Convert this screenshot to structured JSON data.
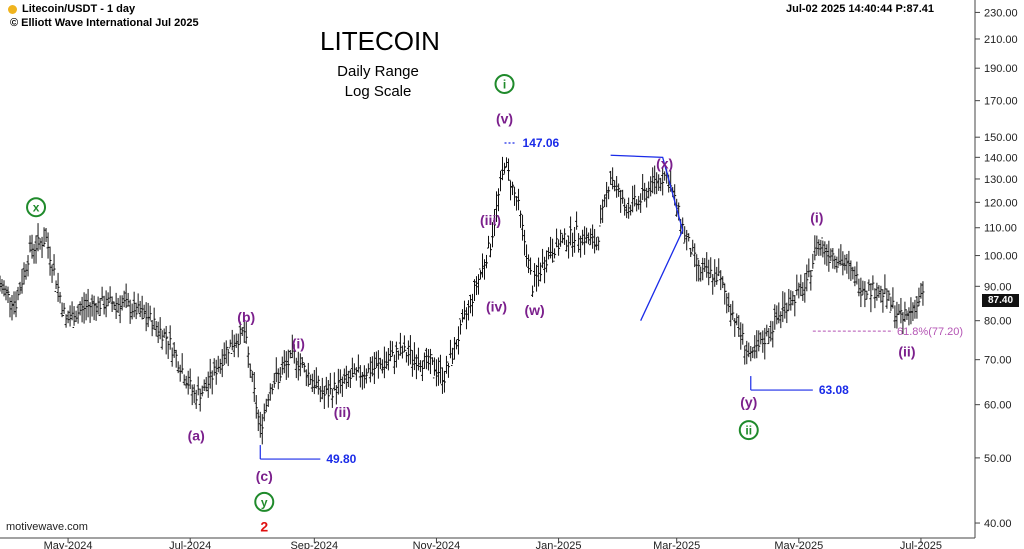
{
  "header": {
    "symbol_line": "Litecoin/USDT - 1 day",
    "copyright_line": "© Elliott Wave International Jul 2025",
    "timestamp_line": "Jul-02 2025  14:40:44  P:87.41",
    "dot_color": "#f0b41e"
  },
  "title": "LITECOIN",
  "subtitle1": "Daily Range",
  "subtitle2": "Log Scale",
  "watermark": "motivewave.com",
  "last_price": "87.40",
  "chart_data": {
    "type": "ohlc",
    "scale": "log",
    "ylim": [
      38,
      240
    ],
    "xlim": [
      "2024-03-28",
      "2025-07-28"
    ],
    "y_ticks": [
      40,
      50,
      60,
      70,
      80,
      90,
      100,
      110,
      120,
      130,
      140,
      150,
      170,
      190,
      210,
      230
    ],
    "y_tick_labels": [
      "40.00",
      "50.00",
      "60.00",
      "70.00",
      "80.00",
      "90.00",
      "100.00",
      "110.00",
      "120.00",
      "130.00",
      "140.00",
      "150.00",
      "170.00",
      "190.00",
      "210.00",
      "230.00"
    ],
    "x_ticks": [
      "2024-05-01",
      "2024-07-01",
      "2024-09-01",
      "2024-11-01",
      "2025-01-01",
      "2025-03-01",
      "2025-05-01",
      "2025-07-01"
    ],
    "x_tick_labels": [
      "May-2024",
      "Jul-2024",
      "Sep-2024",
      "Nov-2024",
      "Jan-2025",
      "Mar-2025",
      "May-2025",
      "Jul-2025"
    ],
    "price_path": [
      [
        "2024-03-28",
        90
      ],
      [
        "2024-04-05",
        85
      ],
      [
        "2024-04-12",
        102
      ],
      [
        "2024-04-20",
        106
      ],
      [
        "2024-04-30",
        80
      ],
      [
        "2024-05-10",
        84
      ],
      [
        "2024-05-20",
        85
      ],
      [
        "2024-05-28",
        85
      ],
      [
        "2024-06-10",
        81
      ],
      [
        "2024-06-20",
        75
      ],
      [
        "2024-07-03",
        62
      ],
      [
        "2024-07-08",
        63
      ],
      [
        "2024-07-20",
        73
      ],
      [
        "2024-07-28",
        77
      ],
      [
        "2024-08-05",
        55
      ],
      [
        "2024-08-10",
        64
      ],
      [
        "2024-08-22",
        71
      ],
      [
        "2024-09-06",
        62
      ],
      [
        "2024-09-20",
        66
      ],
      [
        "2024-10-01",
        68
      ],
      [
        "2024-10-15",
        72
      ],
      [
        "2024-11-01",
        68
      ],
      [
        "2024-11-05",
        66
      ],
      [
        "2024-11-18",
        85
      ],
      [
        "2024-11-28",
        104
      ],
      [
        "2024-12-05",
        138
      ],
      [
        "2024-12-12",
        118
      ],
      [
        "2024-12-19",
        90
      ],
      [
        "2024-12-28",
        102
      ],
      [
        "2025-01-10",
        108
      ],
      [
        "2025-01-20",
        104
      ],
      [
        "2025-01-27",
        132
      ],
      [
        "2025-02-03",
        118
      ],
      [
        "2025-02-10",
        120
      ],
      [
        "2025-02-17",
        128
      ],
      [
        "2025-02-24",
        132
      ],
      [
        "2025-03-05",
        108
      ],
      [
        "2025-03-12",
        95
      ],
      [
        "2025-03-22",
        93
      ],
      [
        "2025-04-07",
        70
      ],
      [
        "2025-04-15",
        76
      ],
      [
        "2025-04-25",
        85
      ],
      [
        "2025-05-05",
        90
      ],
      [
        "2025-05-10",
        104
      ],
      [
        "2025-05-20",
        100
      ],
      [
        "2025-06-02",
        90
      ],
      [
        "2025-06-12",
        88
      ],
      [
        "2025-06-22",
        80
      ],
      [
        "2025-07-02",
        87.4
      ]
    ],
    "annotations": [
      {
        "label": "x",
        "style": "circle-green",
        "date": "2024-04-15",
        "value": 118
      },
      {
        "label": "(b)",
        "style": "purple",
        "date": "2024-07-29",
        "value": 81
      },
      {
        "label": "(a)",
        "style": "purple",
        "date": "2024-07-04",
        "value": 54
      },
      {
        "label": "(c)",
        "style": "purple",
        "date": "2024-08-07",
        "value": 47
      },
      {
        "label": "y",
        "style": "circle-green",
        "date": "2024-08-07",
        "value": 43
      },
      {
        "label": "2",
        "style": "red",
        "date": "2024-08-07",
        "value": 39.5
      },
      {
        "label": "(i)",
        "style": "purple",
        "date": "2024-08-24",
        "value": 74
      },
      {
        "label": "(ii)",
        "style": "purple",
        "date": "2024-09-15",
        "value": 58.5
      },
      {
        "label": "(iii)",
        "style": "purple",
        "date": "2024-11-28",
        "value": 113
      },
      {
        "label": "(iv)",
        "style": "purple",
        "date": "2024-12-01",
        "value": 84
      },
      {
        "label": "(v)",
        "style": "purple",
        "date": "2024-12-05",
        "value": 160
      },
      {
        "label": "i",
        "style": "circle-green",
        "date": "2024-12-05",
        "value": 180
      },
      {
        "label": "(w)",
        "style": "purple",
        "date": "2024-12-20",
        "value": 83
      },
      {
        "label": "(x)",
        "style": "purple",
        "date": "2025-02-23",
        "value": 137
      },
      {
        "label": "(i)",
        "style": "purple",
        "date": "2025-05-10",
        "value": 114
      },
      {
        "label": "(y)",
        "style": "purple",
        "date": "2025-04-06",
        "value": 60.5
      },
      {
        "label": "ii",
        "style": "circle-green",
        "date": "2025-04-06",
        "value": 55
      },
      {
        "label": "(ii)",
        "style": "purple",
        "date": "2025-06-24",
        "value": 72
      }
    ],
    "price_markers": [
      {
        "label": "147.06",
        "value": 147.06,
        "from": "2024-12-05",
        "to": "2024-12-11"
      },
      {
        "label": "49.80",
        "value": 49.8,
        "from": "2024-08-05",
        "to": "2024-09-04"
      },
      {
        "label": "63.08",
        "value": 63.08,
        "from": "2025-04-07",
        "to": "2025-05-08"
      }
    ],
    "fib_level": {
      "label": "61.8%(77.20)",
      "value": 77.2,
      "from": "2025-05-08",
      "to": "2025-07-28"
    },
    "triangle_points": [
      [
        "2025-01-27",
        141
      ],
      [
        "2025-02-22",
        140
      ],
      [
        "2025-03-04",
        109
      ],
      [
        "2025-02-11",
        80
      ]
    ],
    "colors": {
      "bars": "#111111",
      "purple": "#7b1f8c",
      "green": "#1f8a2b",
      "blue": "#1a2be8",
      "red": "#e01010",
      "fib": "#b454b4",
      "axis": "#444444"
    }
  }
}
